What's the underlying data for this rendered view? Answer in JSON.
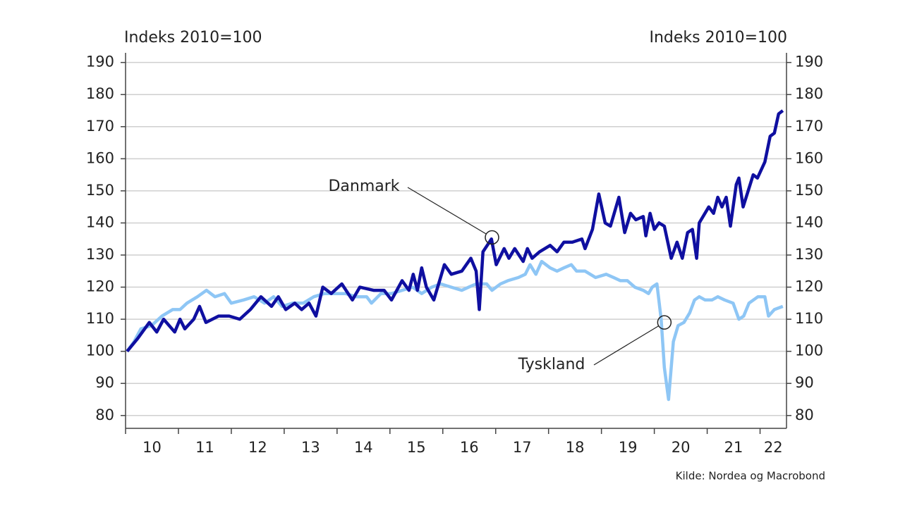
{
  "chart_data": {
    "type": "line",
    "ylabel": "Indeks 2010=100",
    "y2label": "Indeks 2010=100",
    "source": "Kilde: Nordea og Macrobond",
    "xlim": [
      10,
      22.5
    ],
    "xticks": [
      {
        "value": 10.5,
        "label": "10"
      },
      {
        "value": 11.5,
        "label": "11"
      },
      {
        "value": 12.5,
        "label": "12"
      },
      {
        "value": 13.5,
        "label": "13"
      },
      {
        "value": 14.5,
        "label": "14"
      },
      {
        "value": 15.5,
        "label": "15"
      },
      {
        "value": 16.5,
        "label": "16"
      },
      {
        "value": 17.5,
        "label": "17"
      },
      {
        "value": 18.5,
        "label": "18"
      },
      {
        "value": 19.5,
        "label": "19"
      },
      {
        "value": 20.5,
        "label": "20"
      },
      {
        "value": 21.5,
        "label": "21"
      },
      {
        "value": 22.25,
        "label": "22"
      }
    ],
    "xminorticks": [
      10,
      11,
      12,
      13,
      14,
      15,
      16,
      17,
      18,
      19,
      20,
      21,
      22
    ],
    "ylim": [
      76,
      193
    ],
    "yticks": [
      80,
      90,
      100,
      110,
      120,
      130,
      140,
      150,
      160,
      170,
      180,
      190
    ],
    "y2lim": [
      76,
      193
    ],
    "y2ticks": [
      80,
      90,
      100,
      110,
      120,
      130,
      140,
      150,
      160,
      170,
      180,
      190
    ],
    "grid": true,
    "series": [
      {
        "name": "Danmark",
        "color": "#0f0fa0",
        "x": [
          10.03,
          10.23,
          10.45,
          10.59,
          10.72,
          10.93,
          11.03,
          11.12,
          11.29,
          11.4,
          11.52,
          11.76,
          11.96,
          12.16,
          12.36,
          12.56,
          12.76,
          12.89,
          13.03,
          13.2,
          13.33,
          13.47,
          13.6,
          13.73,
          13.89,
          14.09,
          14.29,
          14.43,
          14.69,
          14.89,
          15.03,
          15.23,
          15.36,
          15.44,
          15.52,
          15.6,
          15.69,
          15.83,
          16.03,
          16.16,
          16.36,
          16.53,
          16.63,
          16.69,
          16.76,
          16.92,
          17.01,
          17.16,
          17.25,
          17.36,
          17.52,
          17.6,
          17.69,
          17.83,
          18.03,
          18.16,
          18.29,
          18.45,
          18.63,
          18.69,
          18.83,
          18.95,
          19.07,
          19.17,
          19.33,
          19.44,
          19.55,
          19.65,
          19.79,
          19.84,
          19.92,
          20,
          20.09,
          20.19,
          20.32,
          20.43,
          20.53,
          20.63,
          20.72,
          20.8,
          20.85,
          21.03,
          21.12,
          21.2,
          21.28,
          21.36,
          21.44,
          21.55,
          21.6,
          21.68,
          21.87,
          21.95,
          22.09,
          22.19,
          22.27,
          22.35,
          22.43
        ],
        "values": [
          100,
          104,
          109,
          106,
          110,
          106,
          110,
          107,
          110,
          114,
          109,
          111,
          111,
          110,
          113,
          117,
          114,
          117,
          113,
          115,
          113,
          115,
          111,
          120,
          118,
          121,
          116,
          120,
          119,
          119,
          116,
          122,
          119,
          124,
          119,
          126,
          120,
          116,
          127,
          124,
          125,
          129,
          125,
          113,
          131,
          135,
          127,
          132,
          129,
          132,
          128,
          132,
          129,
          131,
          133,
          131,
          134,
          134,
          135,
          132,
          138,
          149,
          140,
          139,
          148,
          137,
          143,
          141,
          142,
          136,
          143,
          138,
          140,
          139,
          129,
          134,
          129,
          137,
          138,
          129,
          140,
          145,
          143,
          148,
          145,
          148,
          139,
          152,
          154,
          145,
          155,
          154,
          159,
          167,
          168,
          174,
          175
        ]
      },
      {
        "name": "Tyskland",
        "color": "#8ec6f5",
        "x": [
          10.03,
          10.16,
          10.29,
          10.49,
          10.69,
          10.89,
          11.03,
          11.16,
          11.36,
          11.53,
          11.69,
          11.87,
          12,
          12.23,
          12.43,
          12.63,
          12.8,
          12.96,
          13.16,
          13.36,
          13.56,
          13.76,
          13.96,
          14.16,
          14.36,
          14.56,
          14.65,
          14.83,
          15.03,
          15.23,
          15.43,
          15.6,
          15.79,
          15.96,
          16.16,
          16.36,
          16.49,
          16.63,
          16.83,
          16.93,
          17.09,
          17.23,
          17.43,
          17.56,
          17.65,
          17.76,
          17.87,
          18.03,
          18.16,
          18.29,
          18.43,
          18.53,
          18.69,
          18.89,
          19.09,
          19.23,
          19.36,
          19.49,
          19.63,
          19.79,
          19.89,
          19.96,
          20.05,
          20.13,
          20.19,
          20.27,
          20.36,
          20.45,
          20.56,
          20.67,
          20.76,
          20.85,
          20.96,
          21.09,
          21.2,
          21.33,
          21.49,
          21.6,
          21.69,
          21.79,
          21.96,
          22.09,
          22.16,
          22.27,
          22.43
        ],
        "values": [
          100,
          103,
          107,
          108,
          111,
          113,
          113,
          115,
          117,
          119,
          117,
          118,
          115,
          116,
          117,
          115,
          117,
          114,
          115,
          115,
          117,
          118,
          118,
          118,
          117,
          117,
          115,
          118,
          118,
          119,
          120,
          118,
          120,
          121,
          120,
          119,
          120,
          121,
          121,
          119,
          121,
          122,
          123,
          124,
          127,
          124,
          128,
          126,
          125,
          126,
          127,
          125,
          125,
          123,
          124,
          123,
          122,
          122,
          120,
          119,
          118,
          120,
          121,
          110,
          95,
          85,
          103,
          108,
          109,
          112,
          116,
          117,
          116,
          116,
          117,
          116,
          115,
          110,
          111,
          115,
          117,
          117,
          111,
          113,
          114
        ]
      }
    ],
    "annotations": [
      {
        "text": "Danmark",
        "x": 16.93,
        "y": 135.5
      },
      {
        "text": "Tyskland",
        "x": 20.19,
        "y": 109
      }
    ]
  }
}
